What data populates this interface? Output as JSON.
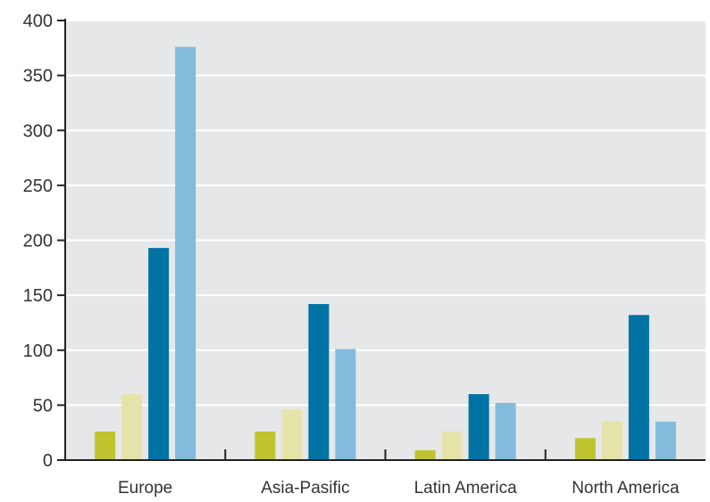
{
  "chart_data": {
    "type": "bar",
    "categories": [
      "Europe",
      "Asia-Pasific",
      "Latin America",
      "North America"
    ],
    "series": [
      {
        "values": [
          26,
          26,
          9,
          20
        ]
      },
      {
        "values": [
          60,
          46,
          26,
          35
        ]
      },
      {
        "values": [
          193,
          142,
          60,
          132
        ]
      },
      {
        "values": [
          376,
          101,
          52,
          35
        ]
      }
    ],
    "series_colors": [
      "#bfc42e",
      "#e6e3aa",
      "#0072a3",
      "#82bbdc"
    ],
    "ylim": [
      0,
      400
    ],
    "yticks": [
      0,
      50,
      100,
      150,
      200,
      250,
      300,
      350,
      400
    ],
    "grid": true,
    "background_color": "#e6e7e8",
    "grid_color": "#ffffff",
    "legend": "none"
  }
}
